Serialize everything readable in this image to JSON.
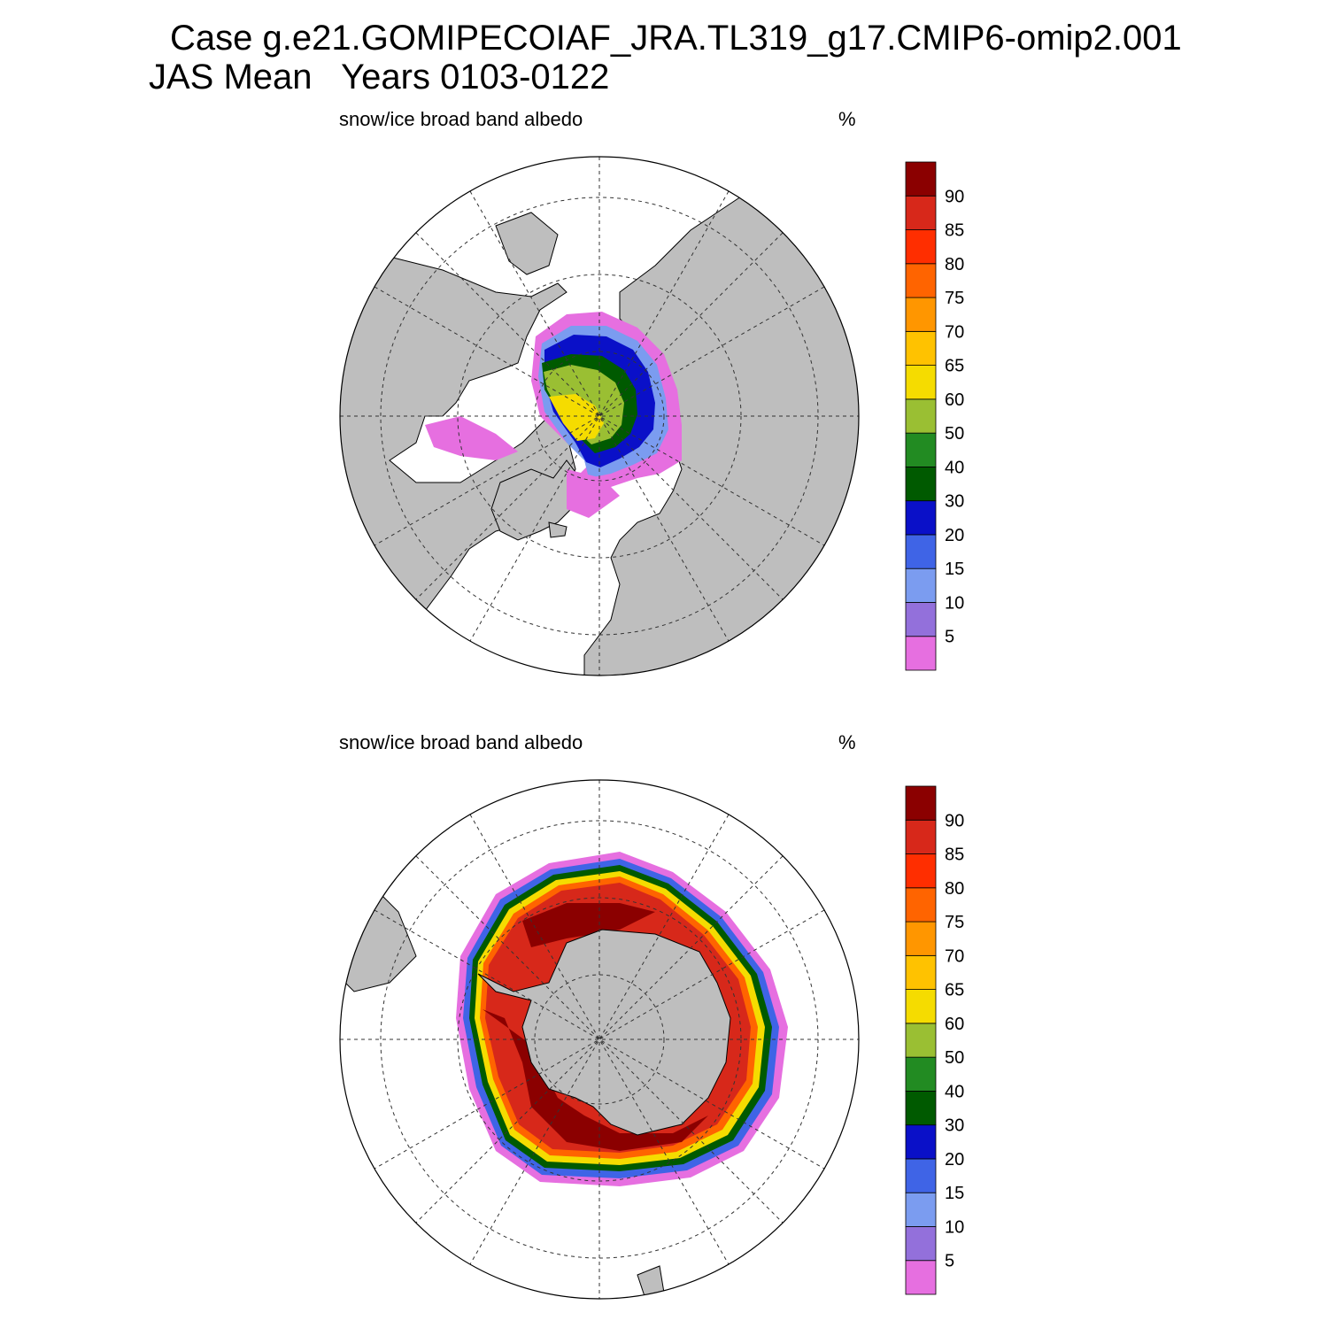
{
  "figure": {
    "title_line1": "Case g.e21.GOMIPECOIAF_JRA.TL319_g17.CMIP6-omip2.001",
    "title_line2": "JAS Mean   Years 0103-0122"
  },
  "panels": [
    {
      "id": "north",
      "variable_label": "snow/ice broad band albedo",
      "units_label": "%",
      "hemisphere": "north"
    },
    {
      "id": "south",
      "variable_label": "snow/ice broad band albedo",
      "units_label": "%",
      "hemisphere": "south"
    }
  ],
  "colorbar": {
    "levels": [
      "5",
      "10",
      "15",
      "20",
      "30",
      "40",
      "50",
      "60",
      "65",
      "70",
      "75",
      "80",
      "85",
      "90"
    ],
    "colors": [
      "#e66fe0",
      "#9370db",
      "#7b9cf0",
      "#3f64e6",
      "#0a10c8",
      "#005a00",
      "#228b22",
      "#9abf33",
      "#f5dc00",
      "#ffc200",
      "#ff9600",
      "#ff6400",
      "#ff2e00",
      "#d7281a",
      "#8b0000"
    ]
  },
  "colors": {
    "land": "#bebebe",
    "ocean": "#ffffff",
    "grid": "#333333"
  }
}
